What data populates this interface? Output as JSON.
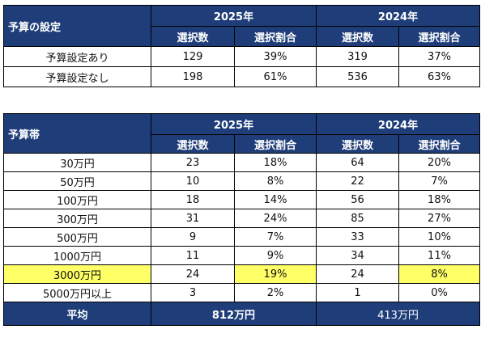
{
  "table1": {
    "corner": "予算の設定",
    "years": [
      "2025年",
      "2024年"
    ],
    "subheaders": [
      "選択数",
      "選択割合",
      "選択数",
      "選択割合"
    ],
    "rows": [
      {
        "label": "予算設定あり",
        "c25": "129",
        "p25": "39%",
        "c24": "319",
        "p24": "37%"
      },
      {
        "label": "予算設定なし",
        "c25": "198",
        "p25": "61%",
        "c24": "536",
        "p24": "63%"
      }
    ]
  },
  "table2": {
    "corner": "予算帯",
    "years": [
      "2025年",
      "2024年"
    ],
    "subheaders": [
      "選択数",
      "選択割合",
      "選択数",
      "選択割合"
    ],
    "rows": [
      {
        "label": "30万円",
        "c25": "23",
        "p25": "18%",
        "c24": "64",
        "p24": "20%"
      },
      {
        "label": "50万円",
        "c25": "10",
        "p25": "8%",
        "c24": "22",
        "p24": "7%"
      },
      {
        "label": "100万円",
        "c25": "18",
        "p25": "14%",
        "c24": "56",
        "p24": "18%"
      },
      {
        "label": "300万円",
        "c25": "31",
        "p25": "24%",
        "c24": "85",
        "p24": "27%"
      },
      {
        "label": "500万円",
        "c25": "9",
        "p25": "7%",
        "c24": "33",
        "p24": "10%"
      },
      {
        "label": "1000万円",
        "c25": "11",
        "p25": "9%",
        "c24": "34",
        "p24": "11%"
      },
      {
        "label": "3000万円",
        "c25": "24",
        "p25": "19%",
        "c24": "24",
        "p24": "8%"
      },
      {
        "label": "5000万円以上",
        "c25": "3",
        "p25": "2%",
        "c24": "1",
        "p24": "0%"
      }
    ],
    "average": {
      "label": "平均",
      "y2025": "812万円",
      "y2024": "413万円"
    }
  },
  "colors": {
    "header_bg": "#1f3e79",
    "highlight": "#ffff66"
  }
}
